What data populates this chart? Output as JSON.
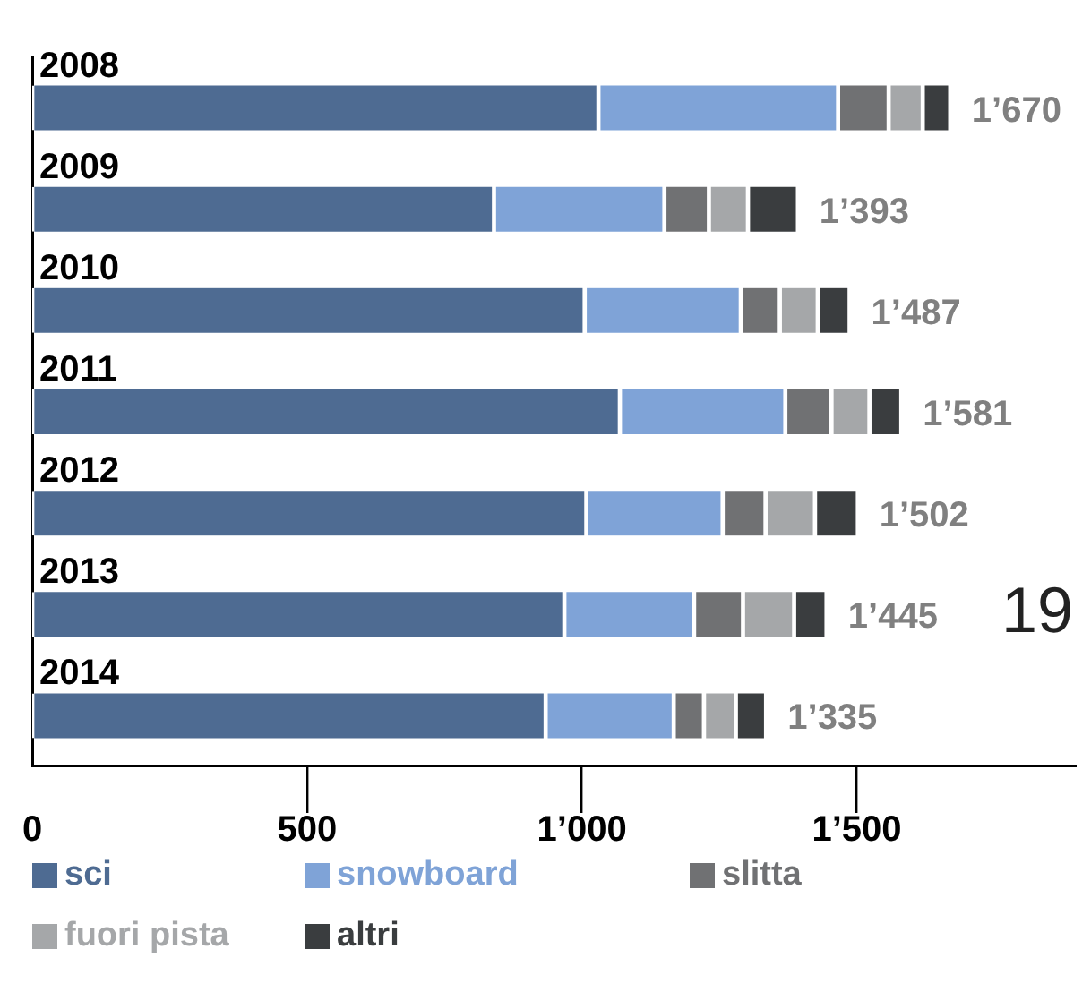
{
  "chart_data": {
    "type": "bar",
    "orientation": "horizontal",
    "stacked": true,
    "categories": [
      "2008",
      "2009",
      "2010",
      "2011",
      "2012",
      "2013",
      "2014"
    ],
    "series": [
      {
        "name": "sci",
        "color": "#4e6b92",
        "values": [
          1030,
          840,
          1005,
          1069,
          1008,
          968,
          934
        ]
      },
      {
        "name": "snowboard",
        "color": "#7fa3d7",
        "values": [
          436,
          310,
          284,
          301,
          248,
          236,
          233
        ]
      },
      {
        "name": "slitta",
        "color": "#707173",
        "values": [
          92,
          81,
          71,
          84,
          78,
          89,
          55
        ]
      },
      {
        "name": "fuori pista",
        "color": "#a5a7a9",
        "values": [
          62,
          71,
          69,
          69,
          90,
          93,
          58
        ]
      },
      {
        "name": "altri",
        "color": "#3a3d3f",
        "values": [
          50,
          91,
          58,
          58,
          78,
          59,
          55
        ]
      }
    ],
    "totals": [
      "1’670",
      "1’393",
      "1’487",
      "1’581",
      "1’502",
      "1’445",
      "1’335"
    ],
    "xlim": [
      0,
      1900
    ],
    "xticks": [
      0,
      500,
      {
        "value": 1000,
        "label": "1’000"
      },
      {
        "value": 1500,
        "label": "1’500"
      }
    ],
    "grid": false,
    "legend": "bottom",
    "annotations": [
      "19"
    ]
  }
}
